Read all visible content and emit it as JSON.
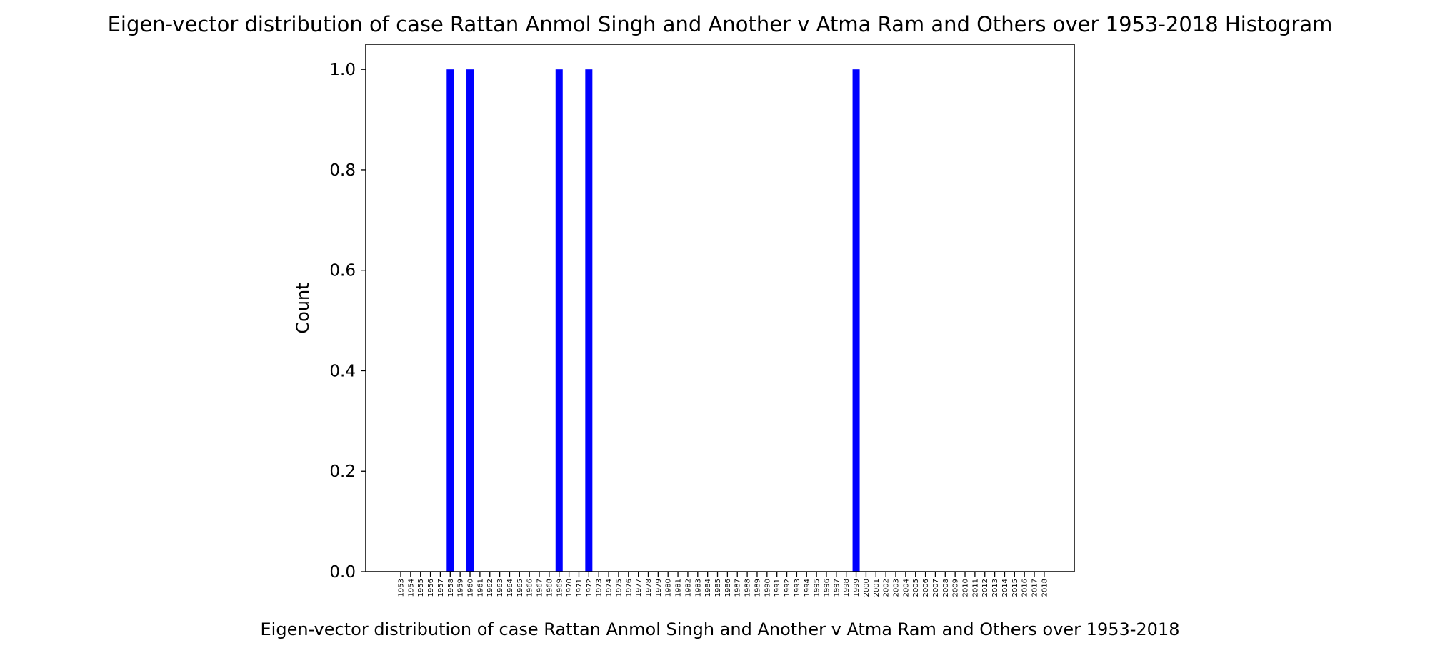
{
  "chart_data": {
    "type": "bar",
    "title": "Eigen-vector distribution of case Rattan Anmol Singh and Another v Atma Ram and Others over 1953-2018 Histogram",
    "xlabel": "Eigen-vector distribution of case Rattan Anmol Singh and Another v Atma Ram and Others over 1953-2018",
    "ylabel": "Count",
    "ylim": [
      0,
      1.05
    ],
    "yticks": [
      "0.0",
      "0.2",
      "0.4",
      "0.6",
      "0.8",
      "1.0"
    ],
    "bar_color": "#0000ff",
    "grid": false,
    "categories": [
      "1953",
      "1954",
      "1955",
      "1956",
      "1957",
      "1958",
      "1959",
      "1960",
      "1961",
      "1962",
      "1963",
      "1964",
      "1965",
      "1966",
      "1967",
      "1968",
      "1969",
      "1970",
      "1971",
      "1972",
      "1973",
      "1974",
      "1975",
      "1976",
      "1977",
      "1978",
      "1979",
      "1980",
      "1981",
      "1982",
      "1983",
      "1984",
      "1985",
      "1986",
      "1987",
      "1988",
      "1989",
      "1990",
      "1991",
      "1992",
      "1993",
      "1994",
      "1995",
      "1996",
      "1997",
      "1998",
      "1999",
      "2000",
      "2001",
      "2002",
      "2003",
      "2004",
      "2005",
      "2006",
      "2007",
      "2008",
      "2009",
      "2010",
      "2011",
      "2012",
      "2013",
      "2014",
      "2015",
      "2016",
      "2017",
      "2018"
    ],
    "values": [
      0,
      0,
      0,
      0,
      0,
      1,
      0,
      1,
      0,
      0,
      0,
      0,
      0,
      0,
      0,
      0,
      1,
      0,
      0,
      1,
      0,
      0,
      0,
      0,
      0,
      0,
      0,
      0,
      0,
      0,
      0,
      0,
      0,
      0,
      0,
      0,
      0,
      0,
      0,
      0,
      0,
      0,
      0,
      0,
      0,
      0,
      1,
      0,
      0,
      0,
      0,
      0,
      0,
      0,
      0,
      0,
      0,
      0,
      0,
      0,
      0,
      0,
      0,
      0,
      0,
      0
    ]
  }
}
